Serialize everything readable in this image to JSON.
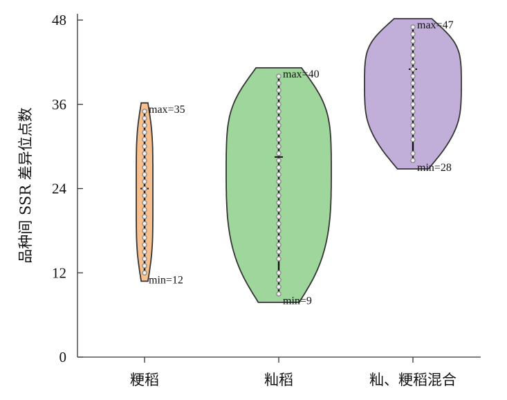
{
  "chart_data": {
    "type": "violin",
    "ylabel": "品种间 SSR 差异位点数",
    "xlabel": "",
    "ylim": [
      0,
      48
    ],
    "yticks": [
      0,
      12,
      24,
      36,
      48
    ],
    "categories": [
      "粳稻",
      "籼稻",
      "籼、粳稻混合"
    ],
    "grid": false,
    "series": [
      {
        "category": "粳稻",
        "color": "#f9c08f",
        "min": 12,
        "max": 35,
        "median": 24,
        "max_label": "max=35",
        "min_label": "min=12",
        "points": [
          12,
          13,
          14,
          15,
          16,
          17,
          18,
          19,
          20,
          21,
          22,
          23,
          24,
          25,
          26,
          27,
          28,
          29,
          30,
          31,
          32,
          33,
          34,
          35
        ]
      },
      {
        "category": "籼稻",
        "color": "#9fd69b",
        "min": 9,
        "max": 40,
        "median": 28.5,
        "max_label": "max=40",
        "min_label": "min=9",
        "points": [
          9,
          10,
          11,
          12,
          14,
          15,
          16,
          17,
          18,
          19,
          20,
          21,
          22,
          23,
          24,
          25,
          26,
          27,
          28,
          29,
          30,
          31,
          32,
          33,
          34,
          35,
          36,
          37,
          38,
          39,
          40
        ]
      },
      {
        "category": "籼、粳稻混合",
        "color": "#c1afd9",
        "min": 28,
        "max": 47,
        "median": 41,
        "max_label": "max=47",
        "min_label": "min=28",
        "points": [
          28,
          29,
          31,
          32,
          33,
          34,
          35,
          36,
          37,
          38,
          39,
          40,
          41,
          42,
          43,
          44,
          45,
          46,
          47
        ]
      }
    ]
  }
}
